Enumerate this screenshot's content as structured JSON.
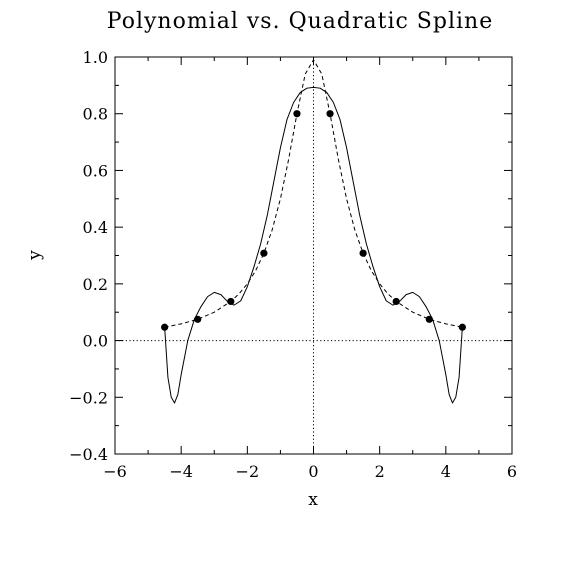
{
  "chart_data": {
    "type": "line",
    "title": "Polynomial vs. Quadratic Spline",
    "xlabel": "x",
    "ylabel": "y",
    "xlim": [
      -6,
      6
    ],
    "ylim": [
      -0.4,
      1.0
    ],
    "x_ticks": [
      -6,
      -4,
      -2,
      0,
      2,
      4,
      6
    ],
    "x_tick_labels": [
      "−6",
      "−4",
      "−2",
      "0",
      "2",
      "4",
      "6"
    ],
    "y_ticks": [
      -0.4,
      -0.2,
      0.0,
      0.2,
      0.4,
      0.6,
      0.8,
      1.0
    ],
    "y_tick_labels": [
      "−0.4",
      "−0.2",
      "0.0",
      "0.2",
      "0.4",
      "0.6",
      "0.8",
      "1.0"
    ],
    "grid": false,
    "legend": "none",
    "zero_lines": true,
    "points": {
      "x": [
        -4.5,
        -3.5,
        -2.5,
        -1.5,
        -0.5,
        0.5,
        1.5,
        2.5,
        3.5,
        4.5
      ],
      "y": [
        0.047,
        0.075,
        0.138,
        0.308,
        0.8,
        0.8,
        0.308,
        0.138,
        0.075,
        0.047
      ]
    },
    "series": [
      {
        "style": "solid",
        "x": [
          -4.5,
          -4.4,
          -4.3,
          -4.2,
          -4.1,
          -4.0,
          -3.8,
          -3.6,
          -3.4,
          -3.2,
          -3.0,
          -2.8,
          -2.6,
          -2.4,
          -2.2,
          -2.0,
          -1.8,
          -1.6,
          -1.4,
          -1.2,
          -1.0,
          -0.8,
          -0.6,
          -0.4,
          -0.2,
          0.0,
          0.2,
          0.4,
          0.6,
          0.8,
          1.0,
          1.2,
          1.4,
          1.6,
          1.8,
          2.0,
          2.2,
          2.4,
          2.6,
          2.8,
          3.0,
          3.2,
          3.4,
          3.6,
          3.8,
          4.0,
          4.1,
          4.2,
          4.3,
          4.4,
          4.5
        ],
        "y": [
          0.047,
          -0.13,
          -0.2,
          -0.22,
          -0.19,
          -0.12,
          0.0,
          0.075,
          0.12,
          0.155,
          0.17,
          0.162,
          0.138,
          0.125,
          0.14,
          0.19,
          0.26,
          0.34,
          0.44,
          0.56,
          0.68,
          0.78,
          0.84,
          0.875,
          0.89,
          0.893,
          0.89,
          0.875,
          0.84,
          0.78,
          0.68,
          0.56,
          0.44,
          0.34,
          0.26,
          0.19,
          0.14,
          0.125,
          0.138,
          0.162,
          0.17,
          0.155,
          0.12,
          0.075,
          0.0,
          -0.12,
          -0.19,
          -0.22,
          -0.2,
          -0.13,
          0.047
        ]
      },
      {
        "style": "dashed",
        "x": [
          -4.5,
          -4.0,
          -3.5,
          -3.0,
          -2.5,
          -2.25,
          -2.0,
          -1.75,
          -1.5,
          -1.25,
          -1.0,
          -0.75,
          -0.5,
          -0.25,
          0.0,
          0.25,
          0.5,
          0.75,
          1.0,
          1.25,
          1.5,
          1.75,
          2.0,
          2.25,
          2.5,
          3.0,
          3.5,
          4.0,
          4.5
        ],
        "y": [
          0.047,
          0.059,
          0.075,
          0.1,
          0.138,
          0.165,
          0.2,
          0.246,
          0.308,
          0.39,
          0.5,
          0.64,
          0.8,
          0.94,
          0.99,
          0.94,
          0.8,
          0.64,
          0.5,
          0.39,
          0.308,
          0.246,
          0.2,
          0.165,
          0.138,
          0.1,
          0.075,
          0.059,
          0.047
        ]
      }
    ]
  }
}
